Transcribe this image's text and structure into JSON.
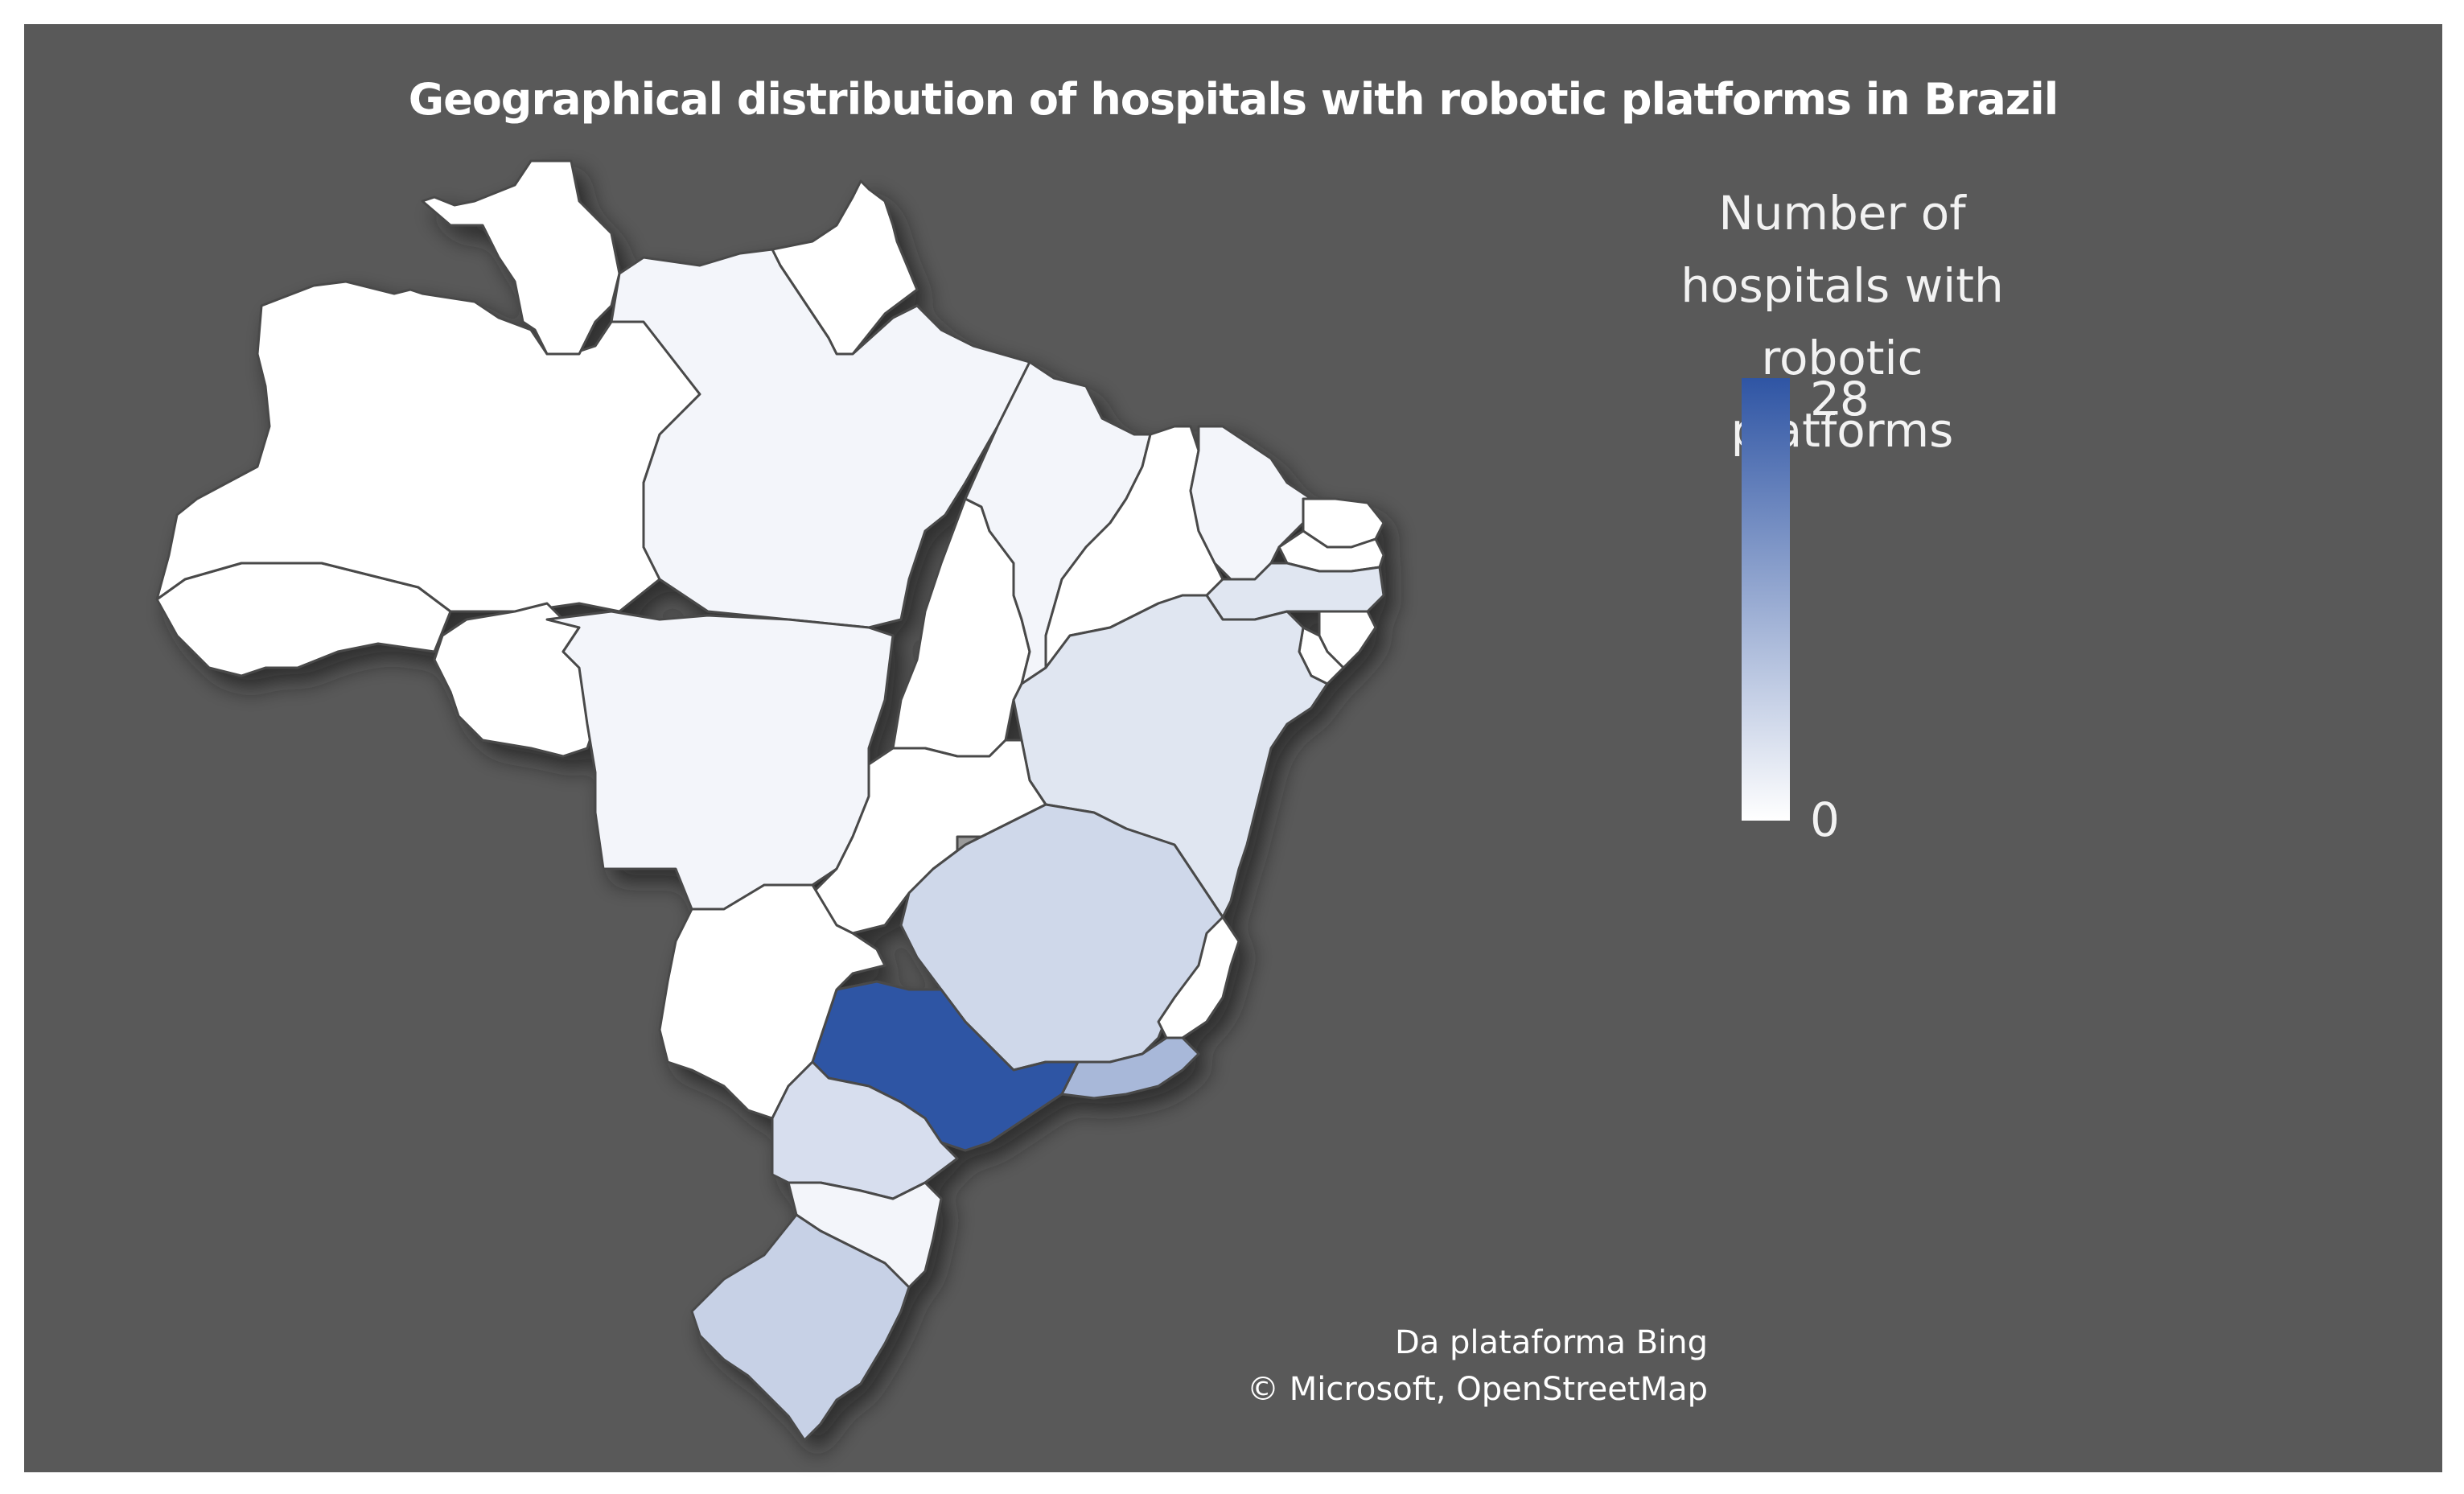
{
  "title": "Geographical distribution of hospitals with robotic platforms in Brazil",
  "legend": {
    "title_line1": "Number of hospitals with",
    "title_line2": "robotic platforms",
    "max_label": "28",
    "min_label": "0",
    "max_value": 28,
    "min_value": 0,
    "color_min": "#ffffff",
    "color_max": "#2f55a4"
  },
  "attribution": {
    "line1": "Da plataforma Bing",
    "line2": "© Microsoft, OpenStreetMap"
  },
  "colors": {
    "background": "#595959",
    "border": "#4a4a4a",
    "text": "#ffffff"
  },
  "states": [
    {
      "id": "AC",
      "value": 0
    },
    {
      "id": "AM",
      "value": 0
    },
    {
      "id": "RR",
      "value": 0
    },
    {
      "id": "AP",
      "value": 0
    },
    {
      "id": "PA",
      "value": 1
    },
    {
      "id": "RO",
      "value": 0
    },
    {
      "id": "MT",
      "value": 1
    },
    {
      "id": "TO",
      "value": 0
    },
    {
      "id": "MA",
      "value": 1
    },
    {
      "id": "PI",
      "value": 0
    },
    {
      "id": "CE",
      "value": 1
    },
    {
      "id": "RN",
      "value": 0
    },
    {
      "id": "PB",
      "value": 0
    },
    {
      "id": "PE",
      "value": 3
    },
    {
      "id": "AL",
      "value": 0
    },
    {
      "id": "SE",
      "value": 0
    },
    {
      "id": "BA",
      "value": 3
    },
    {
      "id": "GO",
      "value": 0
    },
    {
      "id": "DF",
      "value": null
    },
    {
      "id": "MG",
      "value": 5
    },
    {
      "id": "ES",
      "value": 0
    },
    {
      "id": "RJ",
      "value": 10
    },
    {
      "id": "SP",
      "value": 28
    },
    {
      "id": "MS",
      "value": 0
    },
    {
      "id": "PR",
      "value": 4
    },
    {
      "id": "SC",
      "value": 1
    },
    {
      "id": "RS",
      "value": 6
    }
  ]
}
